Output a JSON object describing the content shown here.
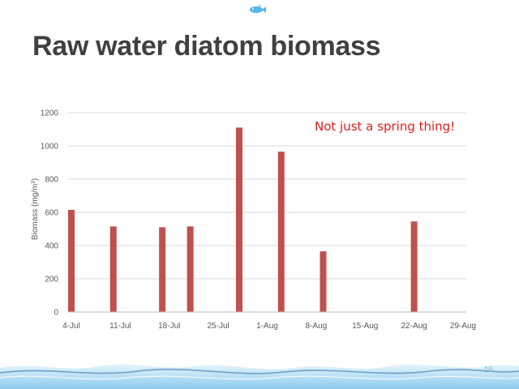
{
  "slide": {
    "title": "Raw water diatom biomass",
    "annotation": "Not just a spring thing!",
    "page_number": "16"
  },
  "colors": {
    "bar": "#c0504d",
    "title": "#404040",
    "annotation": "#e0201b",
    "grid": "#d9d9d9",
    "axis_text": "#595959",
    "water": "#9fd0ee"
  },
  "icons": {
    "logo": "water-drop-fish-icon",
    "footer": "water-wave-band"
  },
  "chart_data": {
    "type": "bar",
    "title": "",
    "xlabel": "",
    "ylabel": "Biomass (mg/m³)",
    "ylim": [
      0,
      1200
    ],
    "yticks": [
      0,
      200,
      400,
      600,
      800,
      1000,
      1200
    ],
    "grid": true,
    "legend": "none",
    "xticks": [
      "4-Jul",
      "11-Jul",
      "18-Jul",
      "25-Jul",
      "1-Aug",
      "8-Aug",
      "15-Aug",
      "22-Aug",
      "29-Aug"
    ],
    "x_days": [
      0,
      7,
      14,
      21,
      28,
      35,
      42,
      49,
      56
    ],
    "bars": [
      {
        "day": 0,
        "value": 615
      },
      {
        "day": 6,
        "value": 515
      },
      {
        "day": 13,
        "value": 510
      },
      {
        "day": 17,
        "value": 515
      },
      {
        "day": 24,
        "value": 1110
      },
      {
        "day": 30,
        "value": 965
      },
      {
        "day": 36,
        "value": 365
      },
      {
        "day": 49,
        "value": 545
      }
    ]
  }
}
